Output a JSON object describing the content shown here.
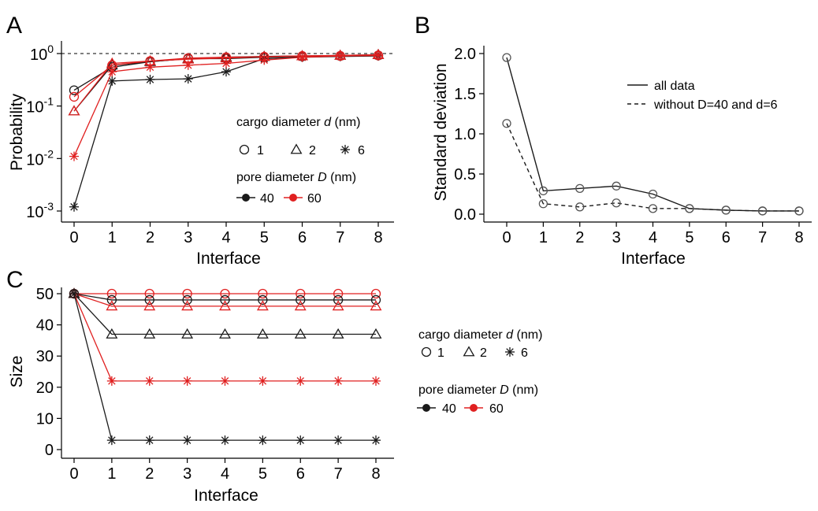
{
  "colors": {
    "D40": "#1a1a1a",
    "D60": "#e02020"
  },
  "panels": [
    {
      "label": "A",
      "chart_data": {
        "type": "line",
        "yscale": "log",
        "xlabel": "Interface",
        "ylabel": "Probability",
        "x": [
          0,
          1,
          2,
          3,
          4,
          5,
          6,
          7,
          8
        ],
        "xlim": [
          0,
          8
        ],
        "ylim": [
          0.001,
          1
        ],
        "yticks": [
          {
            "value": 0.001,
            "base": "10",
            "exp": "-3"
          },
          {
            "value": 0.01,
            "base": "10",
            "exp": "-2"
          },
          {
            "value": 0.1,
            "base": "10",
            "exp": "-1"
          },
          {
            "value": 1,
            "base": "10",
            "exp": "0"
          }
        ],
        "reference_line": {
          "y": 1,
          "style": "dashed"
        },
        "series": [
          {
            "D": "40",
            "d": "1",
            "values": [
              0.2,
              0.55,
              0.7,
              0.8,
              0.8,
              0.85,
              0.88,
              0.9,
              0.92
            ]
          },
          {
            "D": "40",
            "d": "2",
            "values": [
              0.08,
              0.6,
              0.7,
              0.8,
              0.85,
              0.88,
              0.9,
              0.92,
              0.95
            ]
          },
          {
            "D": "40",
            "d": "6",
            "values": [
              0.0012,
              0.3,
              0.32,
              0.33,
              0.45,
              0.8,
              0.85,
              0.88,
              0.9
            ]
          },
          {
            "D": "60",
            "d": "1",
            "values": [
              0.15,
              0.6,
              0.72,
              0.82,
              0.85,
              0.87,
              0.9,
              0.9,
              0.92
            ]
          },
          {
            "D": "60",
            "d": "2",
            "values": [
              0.08,
              0.65,
              0.72,
              0.78,
              0.82,
              0.87,
              0.9,
              0.92,
              0.95
            ]
          },
          {
            "D": "60",
            "d": "6",
            "values": [
              0.011,
              0.45,
              0.55,
              0.6,
              0.65,
              0.75,
              0.85,
              0.9,
              0.93
            ]
          }
        ]
      }
    },
    {
      "label": "B",
      "chart_data": {
        "type": "line",
        "xlabel": "Interface",
        "ylabel": "Standard deviation",
        "x": [
          0,
          1,
          2,
          3,
          4,
          5,
          6,
          7,
          8
        ],
        "xlim": [
          0,
          8
        ],
        "ylim": [
          0,
          2
        ],
        "yticks": [
          "0.0",
          "0.5",
          "1.0",
          "1.5",
          "2.0"
        ],
        "legend_position": "top-right",
        "series": [
          {
            "name": "all data",
            "style": "solid",
            "x": [
              0,
              1,
              2,
              3,
              4,
              5,
              6,
              7,
              8
            ],
            "values": [
              1.95,
              0.29,
              0.32,
              0.35,
              0.25,
              0.07,
              0.05,
              0.04,
              0.04
            ]
          },
          {
            "name": "without D=40 and d=6",
            "style": "dashed",
            "x": [
              0,
              1,
              2,
              3,
              4,
              5,
              6,
              7,
              8
            ],
            "values": [
              1.13,
              0.13,
              0.09,
              0.14,
              0.07,
              0.07,
              0.05,
              0.04,
              0.04
            ]
          }
        ]
      }
    },
    {
      "label": "C",
      "chart_data": {
        "type": "line",
        "xlabel": "Interface",
        "ylabel": "Size",
        "x": [
          0,
          1,
          2,
          3,
          4,
          5,
          6,
          7,
          8
        ],
        "xlim": [
          0,
          8
        ],
        "ylim": [
          0,
          50
        ],
        "yticks": [
          0,
          10,
          20,
          30,
          40,
          50
        ],
        "series": [
          {
            "D": "60",
            "d": "1",
            "values": [
              50,
              50,
              50,
              50,
              50,
              50,
              50,
              50,
              50
            ]
          },
          {
            "D": "40",
            "d": "1",
            "values": [
              50,
              48,
              48,
              48,
              48,
              48,
              48,
              48,
              48
            ]
          },
          {
            "D": "60",
            "d": "2",
            "values": [
              50,
              46,
              46,
              46,
              46,
              46,
              46,
              46,
              46
            ]
          },
          {
            "D": "40",
            "d": "2",
            "values": [
              50,
              37,
              37,
              37,
              37,
              37,
              37,
              37,
              37
            ]
          },
          {
            "D": "60",
            "d": "6",
            "values": [
              50,
              22,
              22,
              22,
              22,
              22,
              22,
              22,
              22
            ]
          },
          {
            "D": "40",
            "d": "6",
            "values": [
              50,
              3,
              3,
              3,
              3,
              3,
              3,
              3,
              3
            ]
          }
        ]
      }
    }
  ],
  "legend": {
    "cargo_title_prefix": "cargo diameter ",
    "cargo_title_var": "d",
    "cargo_title_unit": " (nm)",
    "cargo_items": [
      {
        "label": "1",
        "shape": "circle"
      },
      {
        "label": "2",
        "shape": "triangle"
      },
      {
        "label": "6",
        "shape": "asterisk"
      }
    ],
    "pore_title_prefix": "pore diameter ",
    "pore_title_var": "D",
    "pore_title_unit": " (nm)",
    "pore_items": [
      {
        "label": "40",
        "color": "#1a1a1a"
      },
      {
        "label": "60",
        "color": "#e02020"
      }
    ]
  }
}
